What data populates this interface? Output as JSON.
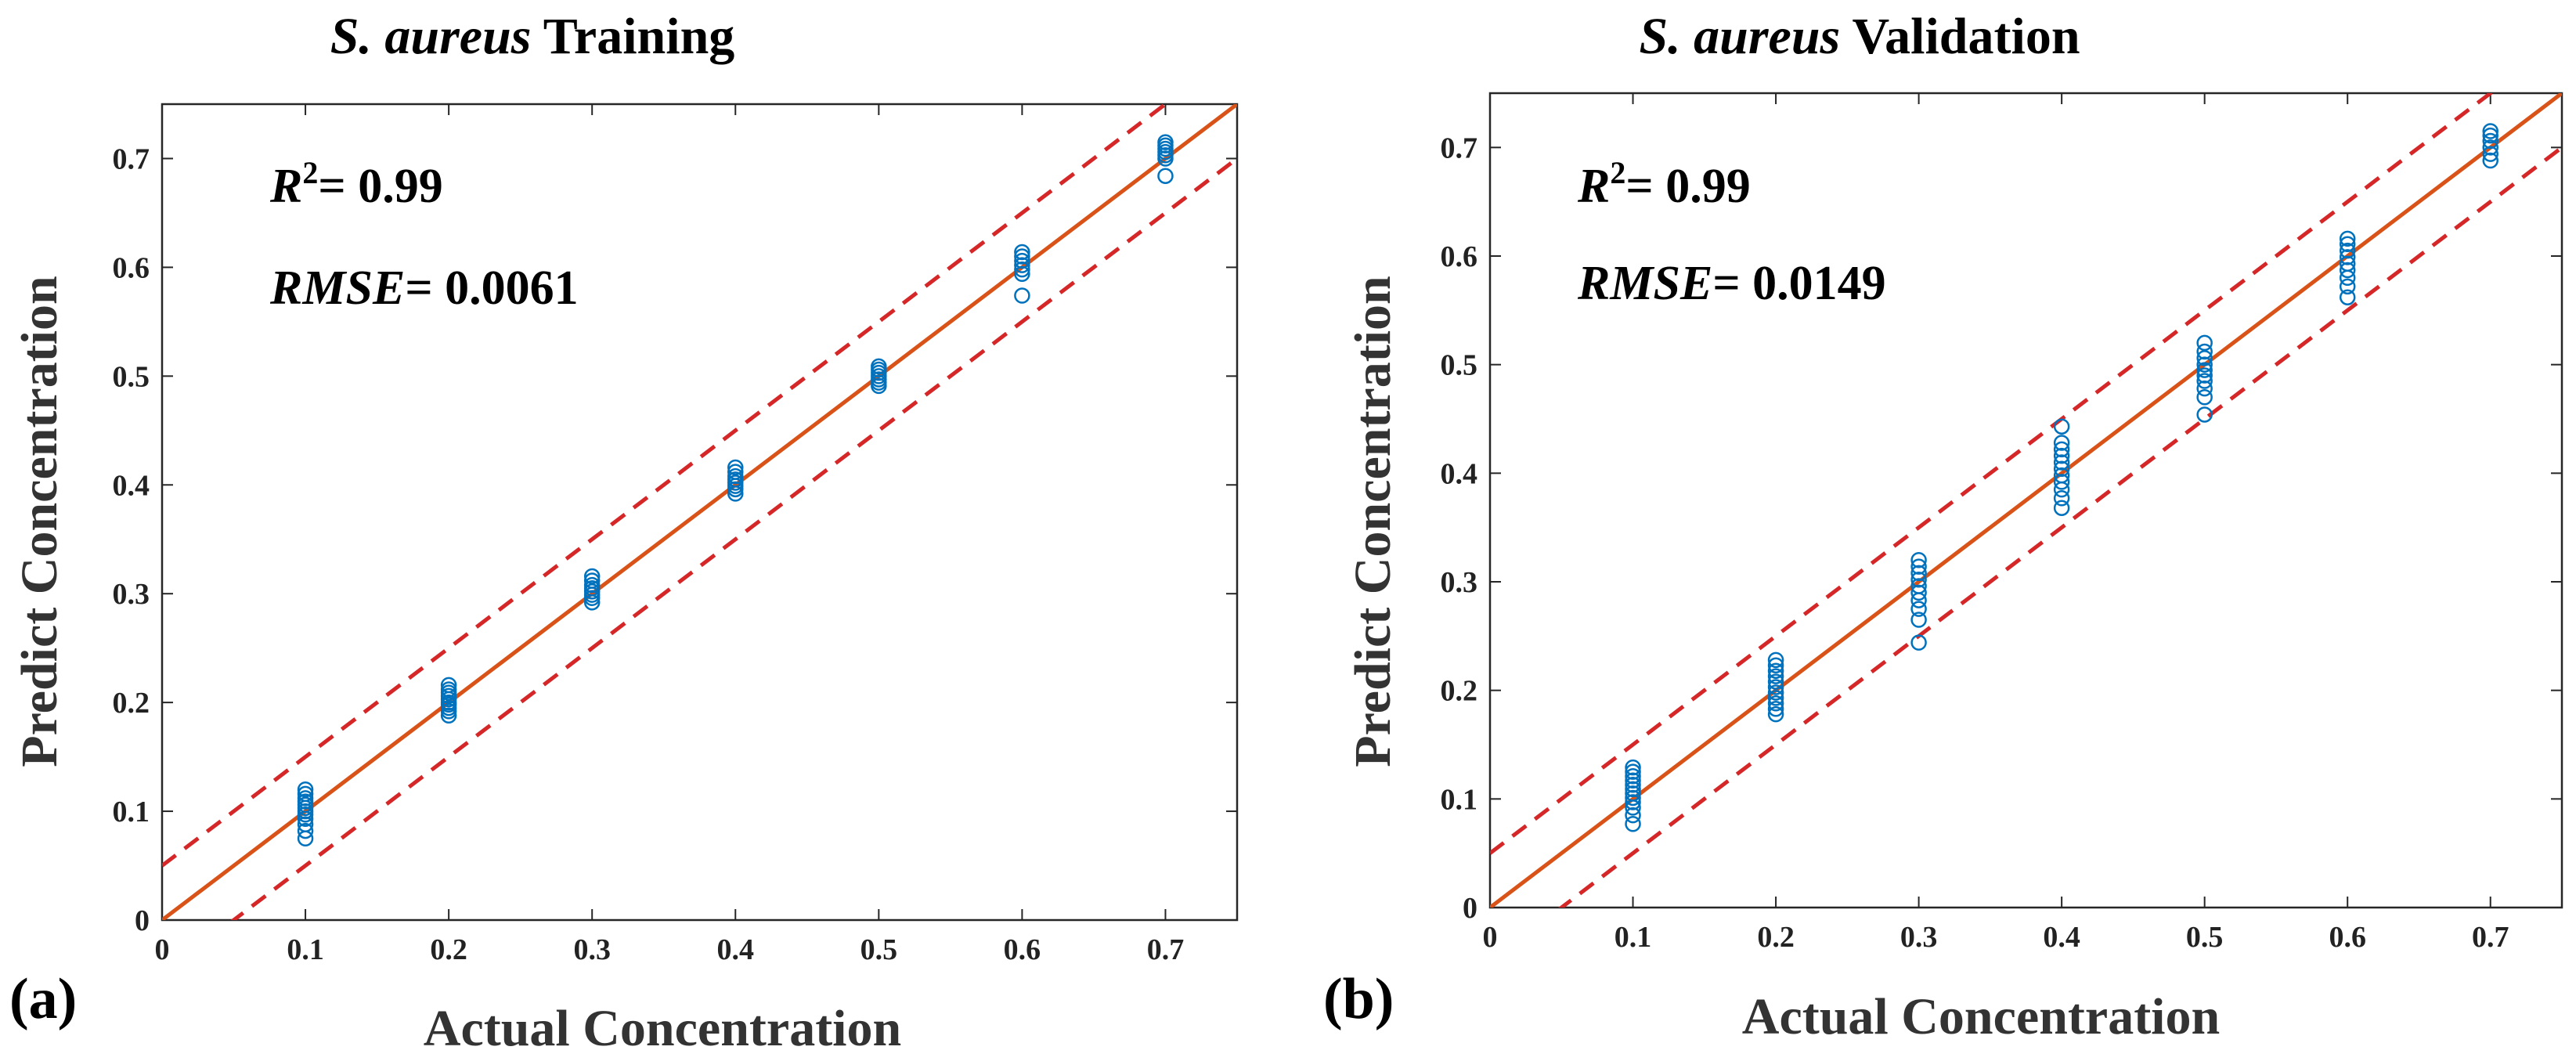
{
  "colors": {
    "fit_line": "#d95319",
    "bounds": "#d62728",
    "points": "#0072bd",
    "axes": "#262626"
  },
  "chart_data": [
    {
      "type": "scatter",
      "panel_label": "(a)",
      "title": {
        "italic": "S. aureus",
        "rest": " Training"
      },
      "xlabel": "Actual Concentration",
      "ylabel": "Predict Concentration",
      "xlim": [
        0,
        0.75
      ],
      "ylim": [
        0,
        0.75
      ],
      "xticks": [
        "0",
        "0.1",
        "0.2",
        "0.3",
        "0.4",
        "0.5",
        "0.6",
        "0.7"
      ],
      "yticks": [
        "0",
        "0.1",
        "0.2",
        "0.3",
        "0.4",
        "0.5",
        "0.6",
        "0.7"
      ],
      "grid": false,
      "annotations": {
        "r2_label": "R",
        "r2_sup": "2",
        "r2_value": "= 0.99",
        "rmse_label": "RMSE",
        "rmse_value": "= 0.0061"
      },
      "reference_lines": [
        {
          "name": "fit",
          "style": "solid",
          "x": [
            0,
            0.75
          ],
          "y": [
            0,
            0.75
          ]
        },
        {
          "name": "upper bound",
          "style": "dashed",
          "x": [
            0,
            0.75
          ],
          "y": [
            0.05,
            0.8
          ]
        },
        {
          "name": "lower bound",
          "style": "dashed",
          "x": [
            0,
            0.75
          ],
          "y": [
            -0.05,
            0.7
          ]
        }
      ],
      "series": [
        {
          "x": 0.1,
          "y": [
            0.075,
            0.082,
            0.088,
            0.093,
            0.097,
            0.1,
            0.103,
            0.106,
            0.109,
            0.112,
            0.116,
            0.12
          ]
        },
        {
          "x": 0.2,
          "y": [
            0.188,
            0.192,
            0.195,
            0.198,
            0.2,
            0.203,
            0.206,
            0.209,
            0.212,
            0.216
          ]
        },
        {
          "x": 0.3,
          "y": [
            0.292,
            0.296,
            0.299,
            0.302,
            0.305,
            0.308,
            0.312,
            0.316
          ]
        },
        {
          "x": 0.4,
          "y": [
            0.392,
            0.396,
            0.399,
            0.402,
            0.405,
            0.408,
            0.412,
            0.416
          ]
        },
        {
          "x": 0.5,
          "y": [
            0.491,
            0.494,
            0.497,
            0.5,
            0.503,
            0.506,
            0.509
          ]
        },
        {
          "x": 0.6,
          "y": [
            0.574,
            0.594,
            0.598,
            0.602,
            0.606,
            0.61,
            0.614
          ]
        },
        {
          "x": 0.7,
          "y": [
            0.684,
            0.7,
            0.703,
            0.706,
            0.709,
            0.712,
            0.715
          ]
        }
      ]
    },
    {
      "type": "scatter",
      "panel_label": "(b)",
      "title": {
        "italic": "S. aureus",
        "rest": " Validation"
      },
      "xlabel": "Actual Concentration",
      "ylabel": "Predict Concentration",
      "xlim": [
        0,
        0.75
      ],
      "ylim": [
        0,
        0.75
      ],
      "xticks": [
        "0",
        "0.1",
        "0.2",
        "0.3",
        "0.4",
        "0.5",
        "0.6",
        "0.7"
      ],
      "yticks": [
        "0",
        "0.1",
        "0.2",
        "0.3",
        "0.4",
        "0.5",
        "0.6",
        "0.7"
      ],
      "grid": false,
      "annotations": {
        "r2_label": "R",
        "r2_sup": "2",
        "r2_value": "= 0.99",
        "rmse_label": "RMSE",
        "rmse_value": "= 0.0149"
      },
      "reference_lines": [
        {
          "name": "fit",
          "style": "solid",
          "x": [
            0,
            0.75
          ],
          "y": [
            0,
            0.75
          ]
        },
        {
          "name": "upper bound",
          "style": "dashed",
          "x": [
            0,
            0.75
          ],
          "y": [
            0.05,
            0.8
          ]
        },
        {
          "name": "lower bound",
          "style": "dashed",
          "x": [
            0,
            0.75
          ],
          "y": [
            -0.05,
            0.7
          ]
        }
      ],
      "series": [
        {
          "x": 0.1,
          "y": [
            0.077,
            0.085,
            0.092,
            0.097,
            0.101,
            0.105,
            0.109,
            0.113,
            0.117,
            0.121,
            0.125,
            0.129
          ]
        },
        {
          "x": 0.2,
          "y": [
            0.178,
            0.183,
            0.188,
            0.193,
            0.198,
            0.203,
            0.208,
            0.213,
            0.218,
            0.223,
            0.228
          ]
        },
        {
          "x": 0.3,
          "y": [
            0.244,
            0.265,
            0.275,
            0.283,
            0.29,
            0.296,
            0.302,
            0.308,
            0.314,
            0.32
          ]
        },
        {
          "x": 0.4,
          "y": [
            0.368,
            0.377,
            0.385,
            0.392,
            0.398,
            0.404,
            0.41,
            0.416,
            0.422,
            0.428,
            0.443
          ]
        },
        {
          "x": 0.5,
          "y": [
            0.454,
            0.47,
            0.478,
            0.485,
            0.49,
            0.495,
            0.5,
            0.506,
            0.512,
            0.52
          ]
        },
        {
          "x": 0.6,
          "y": [
            0.562,
            0.572,
            0.58,
            0.587,
            0.593,
            0.599,
            0.605,
            0.611,
            0.616
          ]
        },
        {
          "x": 0.7,
          "y": [
            0.688,
            0.694,
            0.7,
            0.706,
            0.711,
            0.715
          ]
        }
      ]
    }
  ]
}
